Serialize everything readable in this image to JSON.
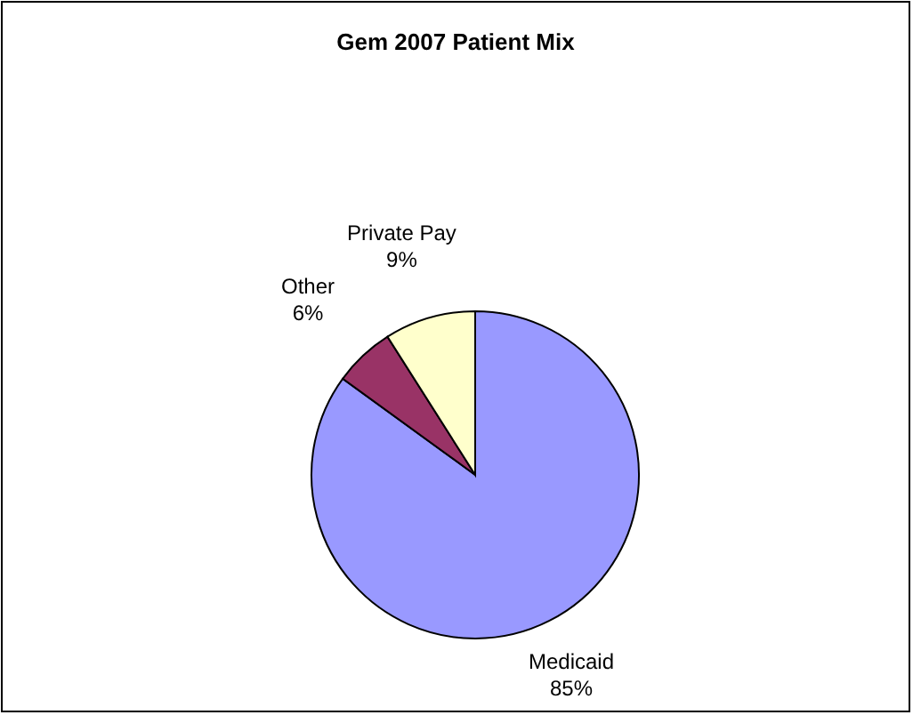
{
  "chart_data": {
    "type": "pie",
    "title": "Gem 2007 Patient Mix",
    "categories": [
      "Medicaid",
      "Other",
      "Private Pay"
    ],
    "values": [
      85,
      6,
      9
    ],
    "colors": [
      "#9999ff",
      "#993366",
      "#ffffcc"
    ],
    "value_labels": [
      "85%",
      "6%",
      "9%"
    ]
  }
}
